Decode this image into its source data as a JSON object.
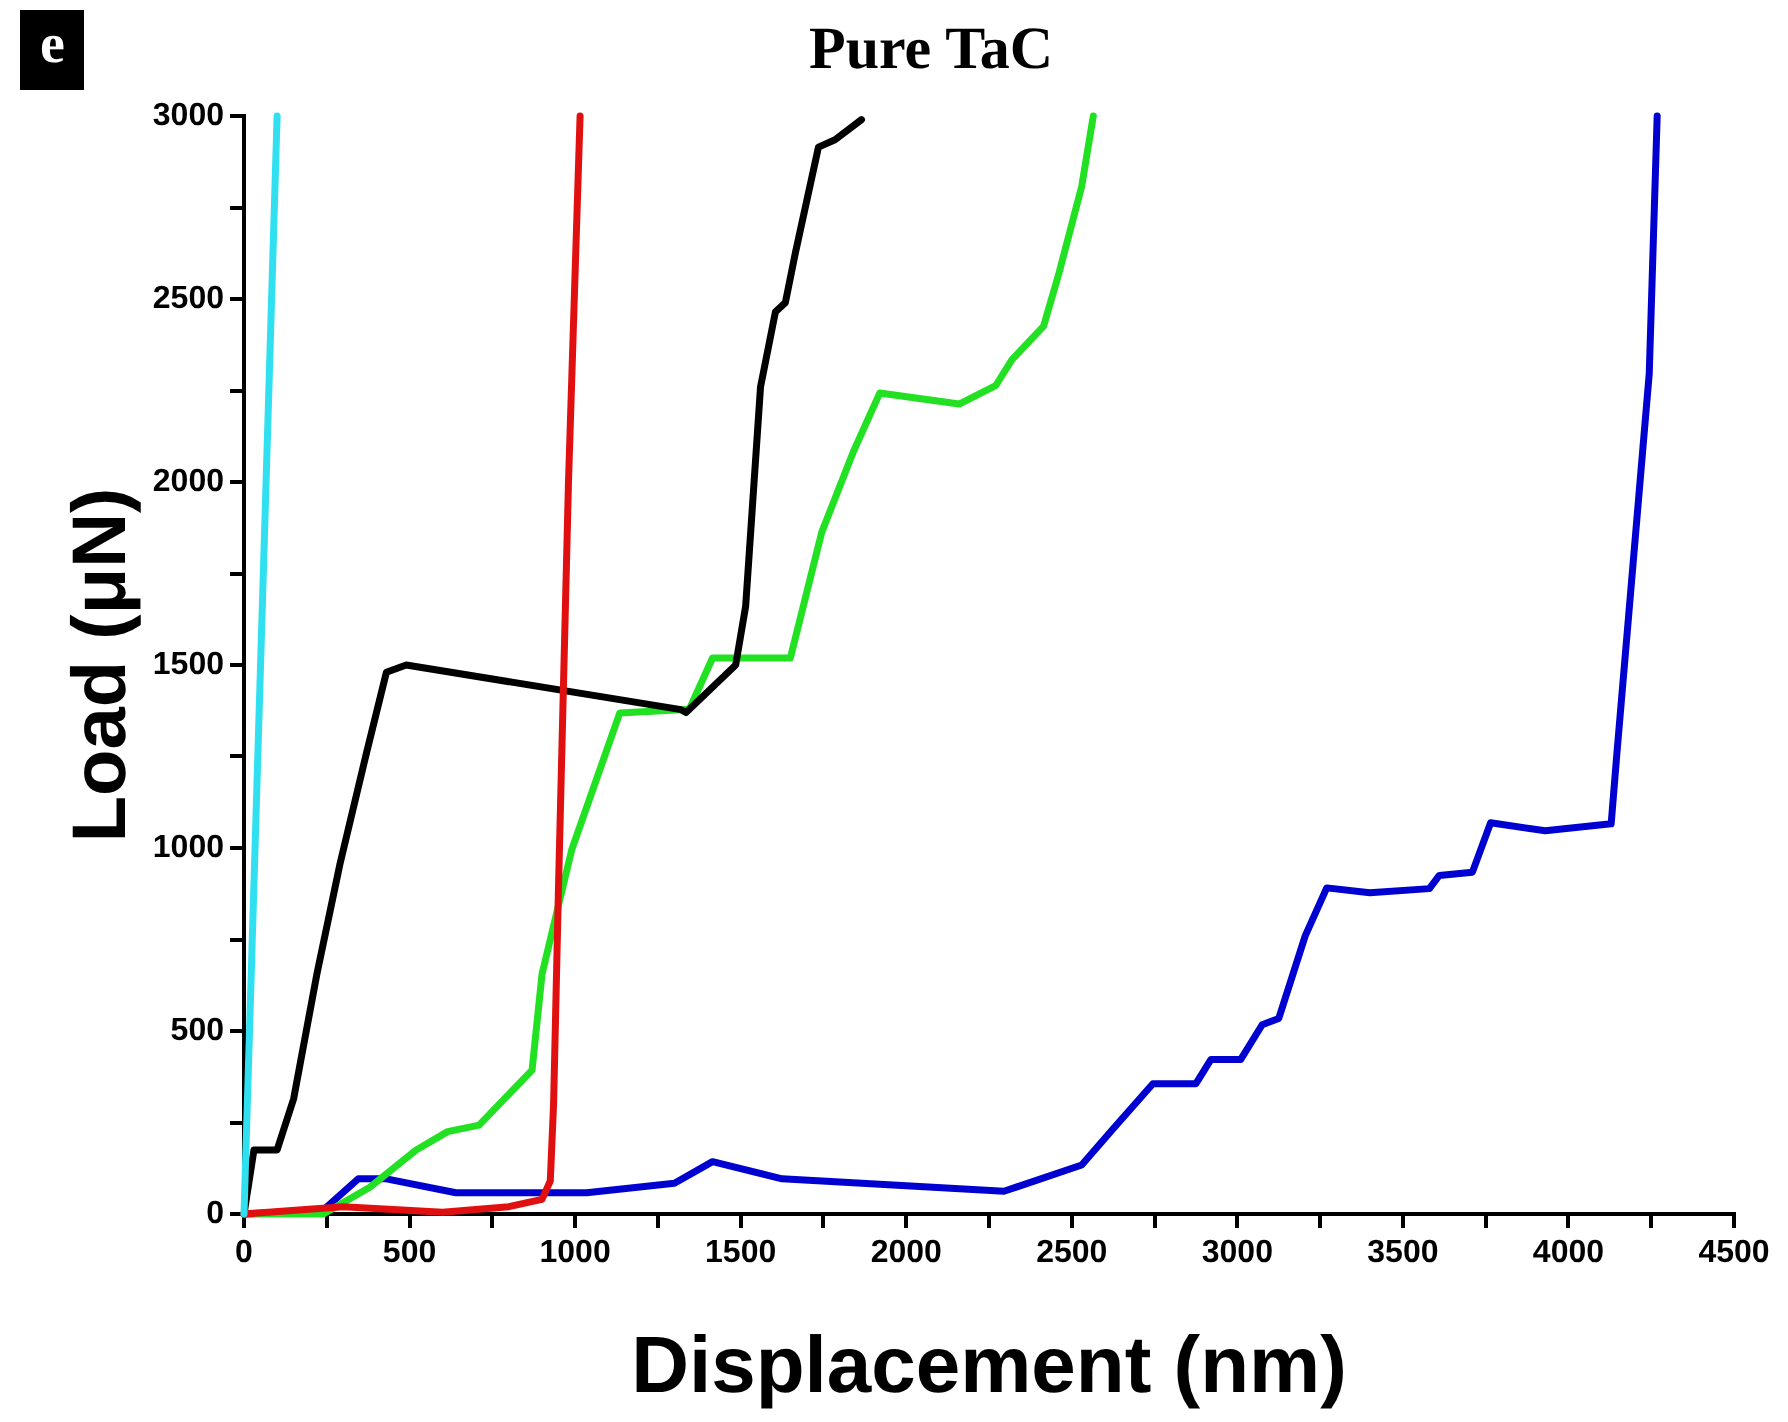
{
  "chart_data": {
    "type": "line",
    "title": "Pure TaC",
    "xlabel": "Displacement (nm)",
    "ylabel": "Load (μN)",
    "annotations": [
      "e"
    ],
    "xlim": [
      0,
      4500
    ],
    "ylim": [
      0,
      3000
    ],
    "xticks": [
      0,
      {
        "value": 250,
        "label": null
      },
      500,
      {
        "value": 750,
        "label": null
      },
      1000,
      {
        "value": 1250,
        "label": null
      },
      1500,
      {
        "value": 1750,
        "label": null
      },
      2000,
      {
        "value": 2250,
        "label": null
      },
      2500,
      {
        "value": 2750,
        "label": null
      },
      3000,
      {
        "value": 3250,
        "label": null
      },
      3500,
      {
        "value": 3750,
        "label": null
      },
      4000,
      {
        "value": 4250,
        "label": null
      },
      4500
    ],
    "yticks": [
      0,
      {
        "value": 250,
        "label": null
      },
      500,
      {
        "value": 750,
        "label": null
      },
      1000,
      {
        "value": 1250,
        "label": null
      },
      1500,
      {
        "value": 1750,
        "label": null
      },
      2000,
      {
        "value": 2250,
        "label": null
      },
      2500,
      {
        "value": 2750,
        "label": null
      },
      3000
    ],
    "grid": false,
    "legend": false,
    "marker": "none",
    "line_style": "solid",
    "series": [
      {
        "color": "#30e0f0",
        "x": [
          0,
          50,
          100
        ],
        "values": [
          0,
          1500,
          3000
        ]
      },
      {
        "color": "#e01010",
        "x": [
          0,
          300,
          600,
          800,
          900,
          925,
          935,
          950,
          980,
          1015
        ],
        "values": [
          0,
          20,
          5,
          20,
          40,
          90,
          300,
          900,
          2000,
          3000
        ]
      },
      {
        "color": "#000000",
        "x": [
          0,
          30,
          100,
          150,
          220,
          290,
          370,
          430,
          490,
          1320,
          1335,
          1485,
          1515,
          1560,
          1605,
          1635,
          1665,
          1735,
          1785,
          1865
        ],
        "values": [
          0,
          175,
          175,
          315,
          655,
          957,
          1260,
          1480,
          1500,
          1378,
          1370,
          1500,
          1660,
          2260,
          2465,
          2490,
          2625,
          2915,
          2935,
          2990
        ]
      },
      {
        "color": "#22e022",
        "x": [
          0,
          240,
          380,
          520,
          615,
          710,
          870,
          900,
          990,
          1135,
          1345,
          1415,
          1650,
          1745,
          1840,
          1920,
          2160,
          2270,
          2320,
          2415,
          2460,
          2530,
          2565
        ],
        "values": [
          0,
          0,
          73,
          175,
          225,
          243,
          393,
          655,
          996,
          1369,
          1379,
          1519,
          1519,
          1863,
          2082,
          2243,
          2213,
          2263,
          2335,
          2426,
          2566,
          2808,
          3000
        ]
      },
      {
        "color": "#0000d0",
        "x": [
          0,
          240,
          345,
          430,
          640,
          1035,
          1300,
          1415,
          1625,
          2295,
          2530,
          2625,
          2745,
          2875,
          2920,
          3010,
          3075,
          3125,
          3205,
          3270,
          3400,
          3580,
          3610,
          3710,
          3765,
          3930,
          4129,
          4146,
          4195,
          4244,
          4268
        ],
        "values": [
          0,
          11,
          96,
          96,
          58,
          58,
          84,
          143,
          96,
          62,
          134,
          233,
          356,
          356,
          422,
          422,
          517,
          534,
          760,
          891,
          878,
          889,
          925,
          934,
          1069,
          1047,
          1066,
          1255,
          1775,
          2296,
          3000
        ]
      }
    ]
  }
}
